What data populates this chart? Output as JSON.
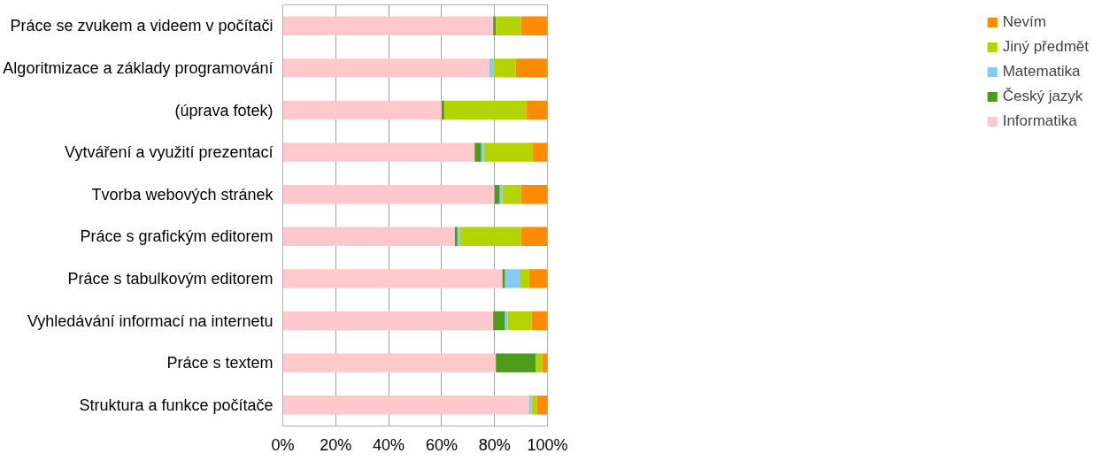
{
  "chart_data": {
    "type": "bar",
    "orientation": "horizontal",
    "stacked": true,
    "categories": [
      "Práce se zvukem a videem v počítači",
      "Algoritmizace a základy programování",
      "(úprava fotek)",
      "Vytváření a využití prezentací",
      "Tvorba webových stránek",
      "Práce s grafickým editorem",
      "Práce s tabulkovým editorem",
      "Vyhledávání informací na internetu",
      "Práce s textem",
      "Struktura a funkce počítače"
    ],
    "series": [
      {
        "name": "Informatika",
        "color": "#ffc8cc",
        "values": [
          79.5,
          78,
          60,
          72.5,
          80,
          65,
          83,
          79.5,
          80.5,
          93
        ]
      },
      {
        "name": "Český jazyk",
        "color": "#4e9a1a",
        "values": [
          1,
          0,
          1,
          2.5,
          2,
          1,
          1,
          4.5,
          15,
          0
        ]
      },
      {
        "name": "Matematika",
        "color": "#85ccf5",
        "values": [
          0,
          1.5,
          0,
          1,
          1,
          1,
          5.5,
          1,
          0,
          1
        ]
      },
      {
        "name": "Jiný předmět",
        "color": "#b4d400",
        "values": [
          9.5,
          8.5,
          31,
          18.5,
          7,
          23,
          3.5,
          9,
          2.5,
          2
        ]
      },
      {
        "name": "Nevím",
        "color": "#ff8c00",
        "values": [
          10,
          12,
          8,
          5.5,
          10,
          10,
          7,
          6,
          2,
          4
        ]
      }
    ],
    "xlim": [
      0,
      100
    ],
    "xticks": [
      {
        "value": 0,
        "label": "0%"
      },
      {
        "value": 20,
        "label": "20%"
      },
      {
        "value": 40,
        "label": "40%"
      },
      {
        "value": 60,
        "label": "60%"
      },
      {
        "value": 80,
        "label": "80%"
      },
      {
        "value": 100,
        "label": "100%"
      }
    ],
    "grid": "x",
    "legend": "right"
  }
}
